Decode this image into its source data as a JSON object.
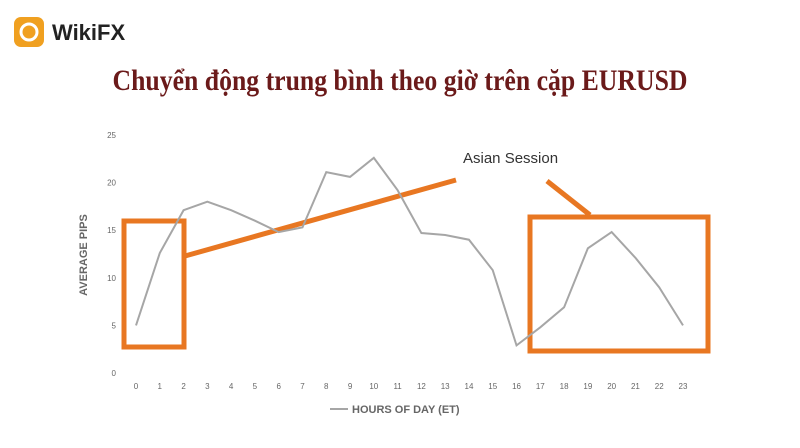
{
  "brand": "WikiFX",
  "chart_data": {
    "type": "line",
    "title": "Chuyển động trung bình theo giờ trên cặp EURUSD",
    "y_label": "AVERAGE PIPS",
    "annotation": "Asian Session",
    "categories": [
      "0",
      "1",
      "2",
      "3",
      "4",
      "5",
      "6",
      "7",
      "8",
      "9",
      "10",
      "11",
      "12",
      "13",
      "14",
      "15",
      "16",
      "17",
      "18",
      "19",
      "20",
      "21",
      "22",
      "23"
    ],
    "series": [
      {
        "name": "HOURS OF DAY (ET)",
        "color": "#a6a6a6",
        "values": [
          5,
          12.6,
          17.1,
          18,
          17.1,
          16,
          14.8,
          15.3,
          21.1,
          20.6,
          22.6,
          19.2,
          14.7,
          14.5,
          14,
          10.8,
          2.9,
          4.8,
          6.9,
          13.1,
          14.8,
          12.1,
          9,
          5
        ]
      }
    ],
    "ylim": [
      0,
      25
    ],
    "yticks": [
      0,
      5,
      10,
      15,
      20,
      25
    ],
    "grid": false
  }
}
